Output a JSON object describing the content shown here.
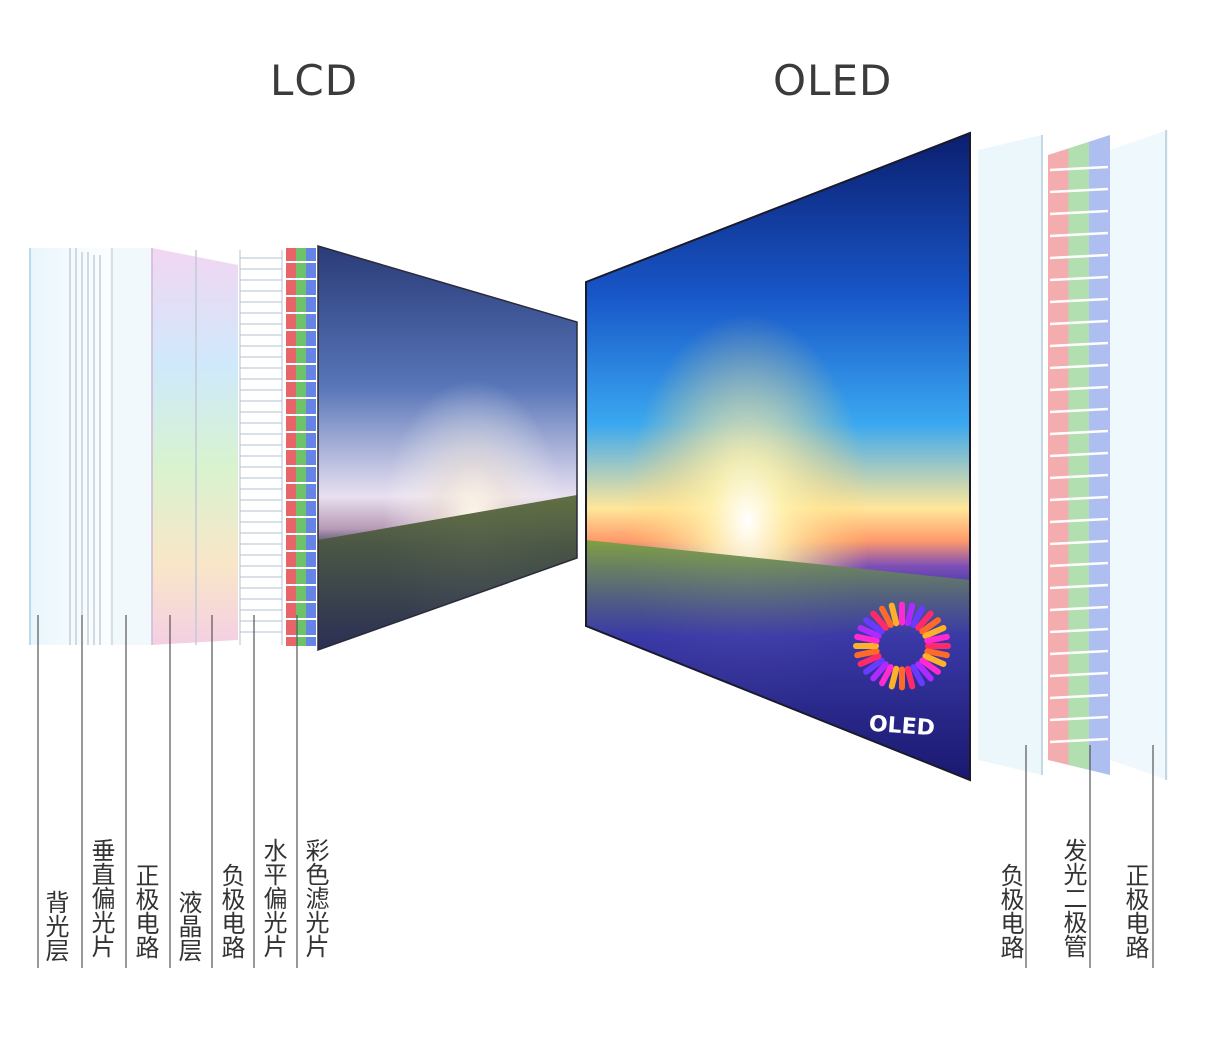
{
  "titles": {
    "lcd": "LCD",
    "oled": "OLED"
  },
  "lcd_layers": [
    {
      "id": "backlight",
      "label": "背光层"
    },
    {
      "id": "vertical-polarizer",
      "label": "垂直偏光片"
    },
    {
      "id": "positive-electrode",
      "label": "正极电路"
    },
    {
      "id": "liquid-crystal",
      "label": "液晶层"
    },
    {
      "id": "negative-electrode",
      "label": "负极电路"
    },
    {
      "id": "horizontal-polarizer",
      "label": "水平偏光片"
    },
    {
      "id": "color-filter",
      "label": "彩色滤光片"
    }
  ],
  "oled_layers": [
    {
      "id": "negative-electrode",
      "label": "负极电路"
    },
    {
      "id": "oled-diodes",
      "label": "发光二极管"
    },
    {
      "id": "positive-electrode",
      "label": "正极电路"
    }
  ],
  "oled_logo_text": "OLED",
  "colors": {
    "title": "#3b3b3b",
    "leader_line": "#555555",
    "label_text": "#333333"
  }
}
